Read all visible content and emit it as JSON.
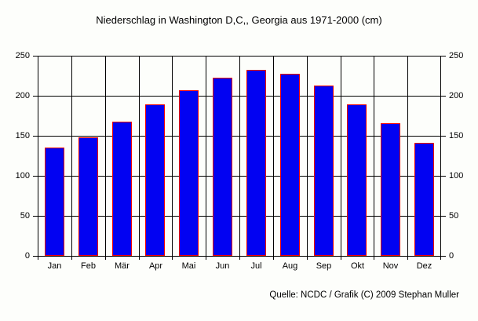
{
  "title": "Niederschlag in Washington D,C,, Georgia aus 1971-2000 (cm)",
  "footer": "Quelle: NCDC / Grafik (C) 2009 Stephan Muller",
  "colors": {
    "background": "#fdfefb",
    "bar_fill": "#0202f2",
    "bar_border": "#f00000",
    "grid": "#000000",
    "text": "#000000"
  },
  "chart_data": {
    "type": "bar",
    "title": "Niederschlag in Washington D,C,, Georgia aus 1971-2000 (cm)",
    "categories": [
      "Jan",
      "Feb",
      "Mär",
      "Apr",
      "Mai",
      "Jun",
      "Jul",
      "Aug",
      "Sep",
      "Okt",
      "Nov",
      "Dez"
    ],
    "values": [
      135,
      148,
      168,
      189,
      207,
      223,
      232,
      227,
      213,
      189,
      166,
      141
    ],
    "xlabel": "",
    "ylabel": "",
    "ylim": [
      0,
      250
    ],
    "ytick_interval": 50,
    "yticks": [
      0,
      50,
      100,
      150,
      200,
      250
    ],
    "grid": true,
    "axis_sides": [
      "left",
      "right"
    ],
    "legend": null,
    "annotation": "Quelle: NCDC / Grafik (C) 2009 Stephan Muller"
  }
}
